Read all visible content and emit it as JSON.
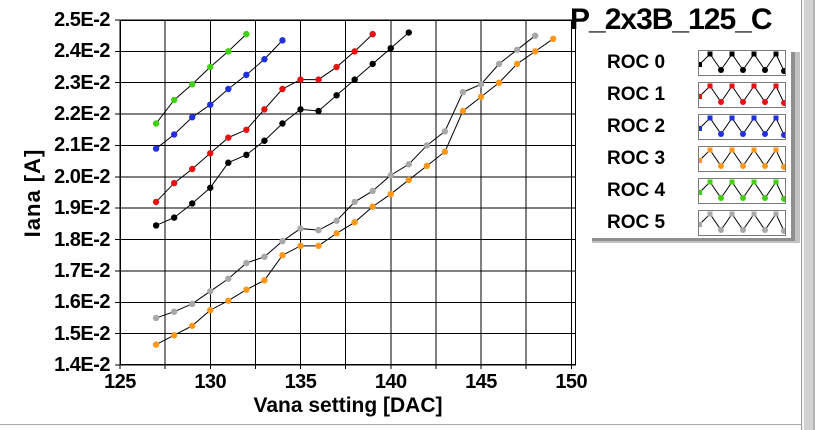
{
  "chart_data": {
    "type": "line",
    "title": "P_2x3B_125_C",
    "xlabel": "Vana setting [DAC]",
    "ylabel": "Iana [A]",
    "xlim": [
      125,
      150
    ],
    "ylim": [
      0.014,
      0.025
    ],
    "grid": true,
    "x_grid_step": 2.5,
    "y_grid_step": 0.001,
    "legend_position": "right",
    "x_tick_values": [
      125,
      130,
      135,
      140,
      145,
      150
    ],
    "x_tick_labels": [
      "125",
      "130",
      "135",
      "140",
      "145",
      "150"
    ],
    "y_tick_values": [
      0.025,
      0.024,
      0.023,
      0.022,
      0.021,
      0.02,
      0.019,
      0.018,
      0.017,
      0.016,
      0.015,
      0.014
    ],
    "y_tick_labels": [
      "2.5E-2",
      "2.4E-2",
      "2.3E-2",
      "2.2E-2",
      "2.1E-2",
      "2.0E-2",
      "1.9E-2",
      "1.8E-2",
      "1.7E-2",
      "1.6E-2",
      "1.5E-2",
      "1.4E-2"
    ],
    "marker": "dot",
    "line_color": "#000000",
    "series": [
      {
        "name": "ROC 0",
        "color": "#000000",
        "x": [
          127,
          128,
          129,
          130,
          131,
          132,
          133,
          134,
          135,
          136,
          137,
          138,
          139,
          140,
          141
        ],
        "y": [
          0.01845,
          0.0187,
          0.01915,
          0.01965,
          0.02045,
          0.0207,
          0.02115,
          0.0217,
          0.02215,
          0.0221,
          0.0226,
          0.0231,
          0.0236,
          0.0241,
          0.0246
        ]
      },
      {
        "name": "ROC 1",
        "color": "#e81010",
        "x": [
          127,
          128,
          129,
          130,
          131,
          132,
          133,
          134,
          135,
          136,
          137,
          138,
          139
        ],
        "y": [
          0.0192,
          0.0198,
          0.02025,
          0.02075,
          0.02125,
          0.0215,
          0.02215,
          0.0228,
          0.0231,
          0.0231,
          0.0235,
          0.024,
          0.02455
        ]
      },
      {
        "name": "ROC 2",
        "color": "#2030e0",
        "x": [
          127,
          128,
          129,
          130,
          131,
          132,
          133,
          134
        ],
        "y": [
          0.0209,
          0.02135,
          0.0219,
          0.0223,
          0.0228,
          0.02325,
          0.02375,
          0.02435
        ]
      },
      {
        "name": "ROC 3",
        "color": "#ff9818",
        "x": [
          127,
          128,
          129,
          130,
          131,
          132,
          133,
          134,
          135,
          136,
          137,
          138,
          139,
          140,
          141,
          142,
          143,
          144,
          145,
          146,
          147,
          148,
          149
        ],
        "y": [
          0.01465,
          0.01495,
          0.01525,
          0.01575,
          0.01605,
          0.0164,
          0.0167,
          0.0175,
          0.0178,
          0.0178,
          0.0182,
          0.01855,
          0.01905,
          0.01945,
          0.0199,
          0.02035,
          0.0208,
          0.0221,
          0.02255,
          0.023,
          0.0236,
          0.024,
          0.0244
        ]
      },
      {
        "name": "ROC 4",
        "color": "#40d010",
        "x": [
          127,
          128,
          129,
          130,
          131,
          132
        ],
        "y": [
          0.0217,
          0.02245,
          0.02295,
          0.0235,
          0.024,
          0.02455
        ]
      },
      {
        "name": "ROC 5",
        "color": "#a8a8a8",
        "x": [
          127,
          128,
          129,
          130,
          131,
          132,
          133,
          134,
          135,
          136,
          137,
          138,
          139,
          140,
          141,
          142,
          143,
          144,
          145,
          146,
          147,
          148
        ],
        "y": [
          0.0155,
          0.0157,
          0.01595,
          0.01635,
          0.01675,
          0.01725,
          0.01745,
          0.01795,
          0.01835,
          0.0183,
          0.0186,
          0.0192,
          0.01955,
          0.02005,
          0.0204,
          0.021,
          0.02145,
          0.0227,
          0.02295,
          0.0236,
          0.02405,
          0.0245
        ]
      }
    ]
  },
  "colors": {
    "plot_grid": "#000000",
    "plot_frame": "#000000",
    "legend_shadow": "#8f8f8f",
    "scrollbar_track": "#d2d2d2",
    "background": "#ffffff"
  }
}
